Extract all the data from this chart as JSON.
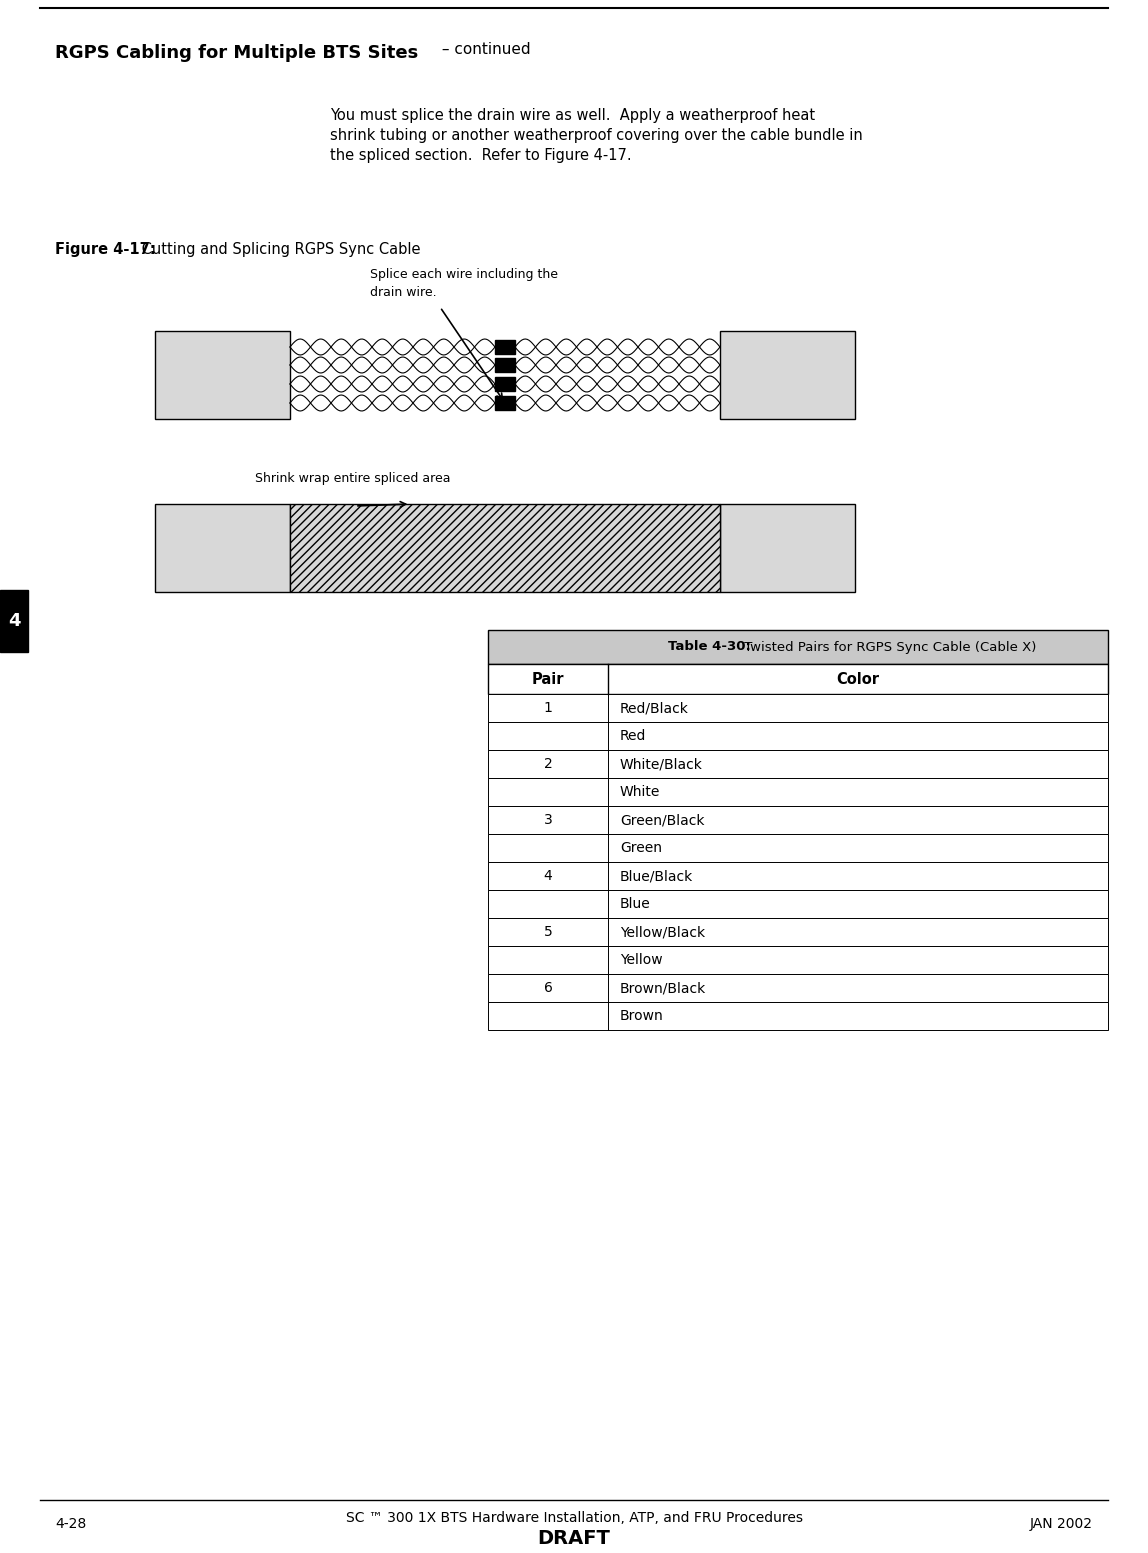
{
  "page_title_bold": "RGPS Cabling for Multiple BTS Sites",
  "page_title_suffix": " – continued",
  "body_text_line1": "You must splice the drain wire as well.  Apply a weatherproof heat",
  "body_text_line2": "shrink tubing or another weatherproof covering over the cable bundle in",
  "body_text_line3": "the spliced section.  Refer to Figure 4-17.",
  "figure_label_bold": "Figure 4-17:",
  "figure_label_normal": " Cutting and Splicing RGPS Sync Cable",
  "annotation1_line1": "Splice each wire including the",
  "annotation1_line2": "drain wire.",
  "annotation2": "Shrink wrap entire spliced area",
  "table_title_bold": "Table 4-30:",
  "table_title_normal": " Twisted Pairs for RGPS Sync Cable (Cable X)",
  "table_headers": [
    "Pair",
    "Color"
  ],
  "table_rows": [
    [
      "1",
      "Red/Black",
      "Red"
    ],
    [
      "2",
      "White/Black",
      "White"
    ],
    [
      "3",
      "Green/Black",
      "Green"
    ],
    [
      "4",
      "Blue/Black",
      "Blue"
    ],
    [
      "5",
      "Yellow/Black",
      "Yellow"
    ],
    [
      "6",
      "Brown/Black",
      "Brown"
    ]
  ],
  "footer_left": "4-28",
  "footer_center": "SC ™ 300 1X BTS Hardware Installation, ATP, and FRU Procedures",
  "footer_draft": "DRAFT",
  "footer_right": "JAN 2002",
  "chapter_tab": "4",
  "bg_color": "#ffffff",
  "box_fill": "#d8d8d8",
  "hatch_fill": "#d8d8d8",
  "table_title_bg": "#c8c8c8"
}
